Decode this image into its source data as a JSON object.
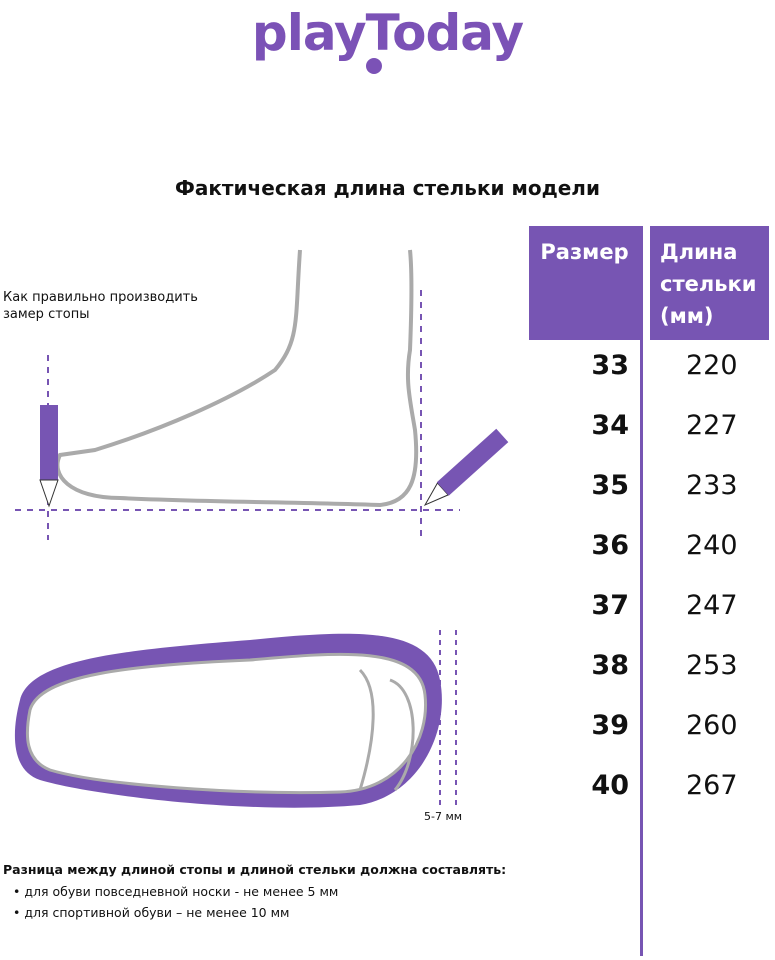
{
  "brand": {
    "logo_text": "playToday",
    "color": "#7b52b6"
  },
  "title": "Фактическая длина стельки модели",
  "instructions": {
    "howto": "Как правильно производить замер стопы",
    "gap_label": "5-7 мм"
  },
  "table": {
    "headers": {
      "size": "Размер",
      "length": "Длина стельки (мм)"
    },
    "accent": "#7755b3",
    "rows": [
      {
        "size": "33",
        "length": "220"
      },
      {
        "size": "34",
        "length": "227"
      },
      {
        "size": "35",
        "length": "233"
      },
      {
        "size": "36",
        "length": "240"
      },
      {
        "size": "37",
        "length": "247"
      },
      {
        "size": "38",
        "length": "253"
      },
      {
        "size": "39",
        "length": "260"
      },
      {
        "size": "40",
        "length": "267"
      }
    ]
  },
  "note": {
    "heading": "Разница между длиной стопы и длиной стельки должна составлять:",
    "bullets": [
      "для обуви повседневной носки -  не менее 5 мм",
      "для спортивной обуви – не менее 10 мм"
    ]
  }
}
